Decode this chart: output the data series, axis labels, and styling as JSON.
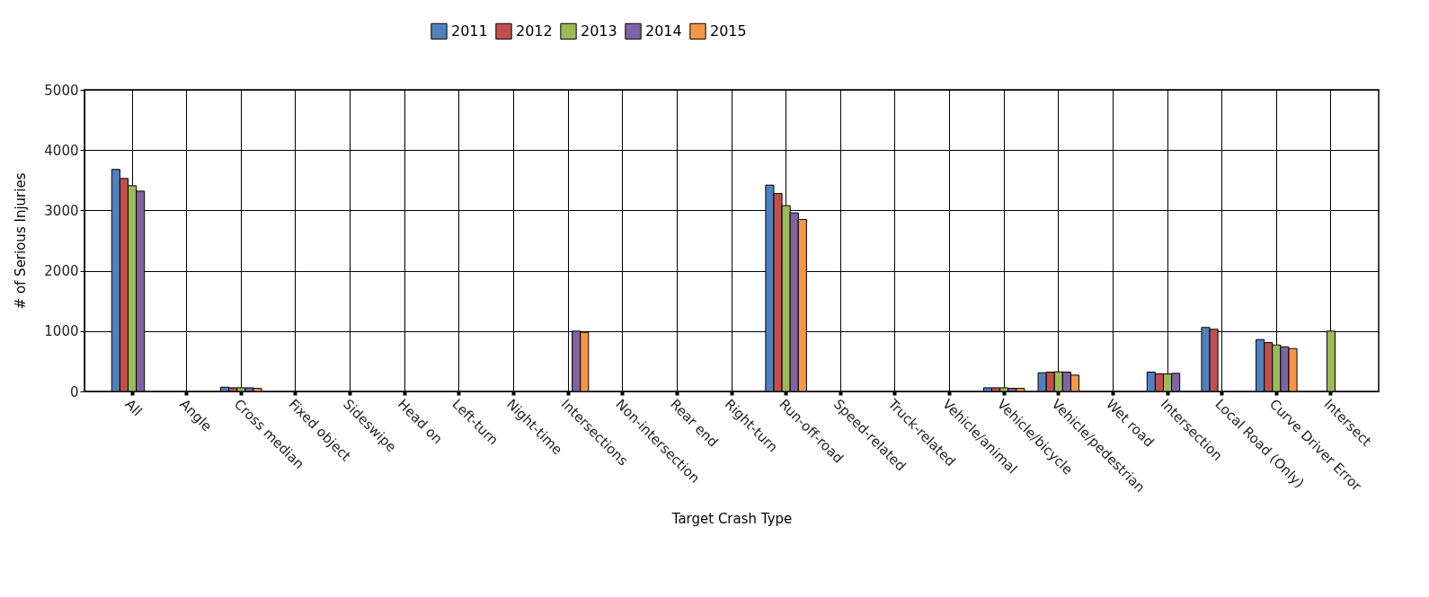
{
  "chart_data": {
    "type": "bar",
    "xlabel": "Target Crash Type",
    "ylabel": "# of Serious Injuries",
    "categories": [
      "All",
      "Angle",
      "Cross median",
      "Fixed object",
      "Sideswipe",
      "Head on",
      "Left-turn",
      "Night-time",
      "Intersections",
      "Non-intersection",
      "Rear end",
      "Right-turn",
      "Run-off-road",
      "Speed-related",
      "Truck-related",
      "Vehicle/animal",
      "Vehicle/bicycle",
      "Vehicle/pedestrian",
      "Wet road",
      "Intersection",
      "Local Road (Only)",
      "Curve Driver Error",
      "Intersect"
    ],
    "series": [
      {
        "name": "2011",
        "color": "#4f81bd",
        "values": [
          3680,
          null,
          70,
          null,
          null,
          null,
          null,
          null,
          null,
          null,
          null,
          null,
          3420,
          null,
          null,
          null,
          60,
          310,
          null,
          320,
          1060,
          860,
          null
        ]
      },
      {
        "name": "2012",
        "color": "#c0504d",
        "values": [
          3530,
          null,
          60,
          null,
          null,
          null,
          null,
          null,
          null,
          null,
          null,
          null,
          3280,
          null,
          null,
          null,
          60,
          320,
          null,
          290,
          1030,
          810,
          null
        ]
      },
      {
        "name": "2013",
        "color": "#9bbb59",
        "values": [
          3410,
          null,
          60,
          null,
          null,
          null,
          null,
          null,
          null,
          null,
          null,
          null,
          3080,
          null,
          null,
          null,
          60,
          325,
          null,
          290,
          null,
          770,
          1000
        ]
      },
      {
        "name": "2014",
        "color": "#8064a2",
        "values": [
          3320,
          null,
          60,
          null,
          null,
          null,
          null,
          null,
          1000,
          null,
          null,
          null,
          2960,
          null,
          null,
          null,
          50,
          320,
          null,
          300,
          null,
          740,
          null
        ]
      },
      {
        "name": "2015",
        "color": "#f79646",
        "values": [
          null,
          null,
          50,
          null,
          null,
          null,
          null,
          null,
          980,
          null,
          null,
          null,
          2850,
          null,
          null,
          null,
          50,
          270,
          null,
          null,
          null,
          710,
          null
        ]
      }
    ],
    "ylim": [
      0,
      5000
    ],
    "yticks": [
      0,
      1000,
      2000,
      3000,
      4000,
      5000
    ],
    "grid": true,
    "legend": "top"
  }
}
